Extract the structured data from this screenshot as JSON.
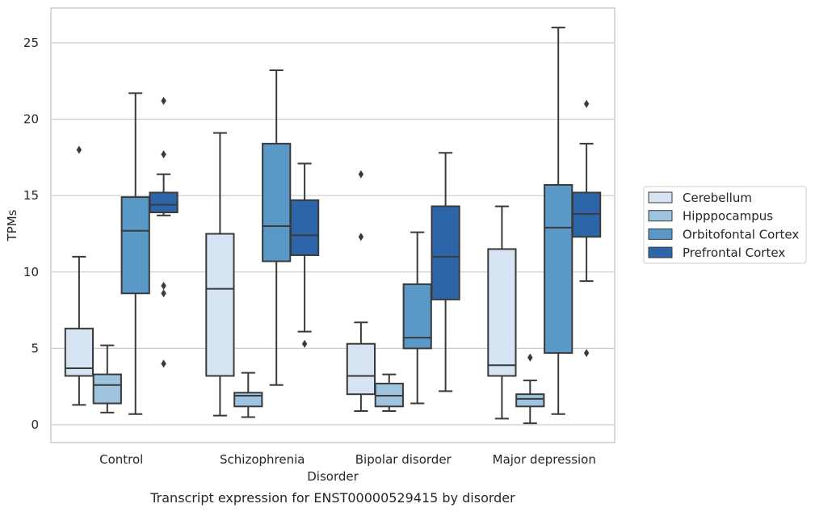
{
  "caption": "Transcript expression for ENST00000529415 by disorder",
  "chart_data": {
    "type": "boxplot",
    "title": "",
    "xlabel": "Disorder",
    "ylabel": "TPMs",
    "ylim": [
      -1.4,
      27.1
    ],
    "yticks": [
      0,
      5,
      10,
      15,
      20,
      25
    ],
    "grid": "horizontal",
    "legend_position": "right",
    "categories": [
      "Control",
      "Schizophrenia",
      "Bipolar disorder",
      "Major depression"
    ],
    "series": [
      {
        "name": "Cerebellum",
        "color": "#d5e3f2",
        "boxes": [
          {
            "min": 1.3,
            "q1": 3.2,
            "median": 3.7,
            "q3": 6.3,
            "max": 11.0,
            "outliers": [
              18.0
            ]
          },
          {
            "min": 0.6,
            "q1": 3.2,
            "median": 8.9,
            "q3": 12.5,
            "max": 19.1,
            "outliers": []
          },
          {
            "min": 0.9,
            "q1": 2.0,
            "median": 3.2,
            "q3": 5.3,
            "max": 6.7,
            "outliers": [
              12.3,
              16.4
            ]
          },
          {
            "min": 0.4,
            "q1": 3.2,
            "median": 3.9,
            "q3": 11.5,
            "max": 14.3,
            "outliers": []
          }
        ]
      },
      {
        "name": "Hipppocampus",
        "color": "#9dc3de",
        "boxes": [
          {
            "min": 0.8,
            "q1": 1.4,
            "median": 2.6,
            "q3": 3.3,
            "max": 5.2,
            "outliers": []
          },
          {
            "min": 0.5,
            "q1": 1.2,
            "median": 1.9,
            "q3": 2.1,
            "max": 3.4,
            "outliers": []
          },
          {
            "min": 0.9,
            "q1": 1.2,
            "median": 1.9,
            "q3": 2.7,
            "max": 3.3,
            "outliers": []
          },
          {
            "min": 0.1,
            "q1": 1.2,
            "median": 1.7,
            "q3": 2.0,
            "max": 2.9,
            "outliers": [
              4.4
            ]
          }
        ]
      },
      {
        "name": "Orbitofontal Cortex",
        "color": "#5a98c7",
        "boxes": [
          {
            "min": 0.7,
            "q1": 8.6,
            "median": 12.7,
            "q3": 14.9,
            "max": 21.7,
            "outliers": []
          },
          {
            "min": 2.6,
            "q1": 10.7,
            "median": 13.0,
            "q3": 18.4,
            "max": 23.2,
            "outliers": []
          },
          {
            "min": 1.4,
            "q1": 5.0,
            "median": 5.7,
            "q3": 9.2,
            "max": 12.6,
            "outliers": []
          },
          {
            "min": 0.7,
            "q1": 4.7,
            "median": 12.9,
            "q3": 15.7,
            "max": 26.0,
            "outliers": []
          }
        ]
      },
      {
        "name": "Prefrontal Cortex",
        "color": "#2c66a8",
        "boxes": [
          {
            "min": 13.7,
            "q1": 13.9,
            "median": 14.4,
            "q3": 15.2,
            "max": 16.4,
            "outliers": [
              4.0,
              8.6,
              9.1,
              17.7,
              21.2
            ]
          },
          {
            "min": 6.1,
            "q1": 11.1,
            "median": 12.4,
            "q3": 14.7,
            "max": 17.1,
            "outliers": [
              5.3
            ]
          },
          {
            "min": 2.2,
            "q1": 8.2,
            "median": 11.0,
            "q3": 14.3,
            "max": 17.8,
            "outliers": []
          },
          {
            "min": 9.4,
            "q1": 12.3,
            "median": 13.8,
            "q3": 15.2,
            "max": 18.4,
            "outliers": [
              4.7,
              21.0
            ]
          }
        ]
      }
    ]
  }
}
